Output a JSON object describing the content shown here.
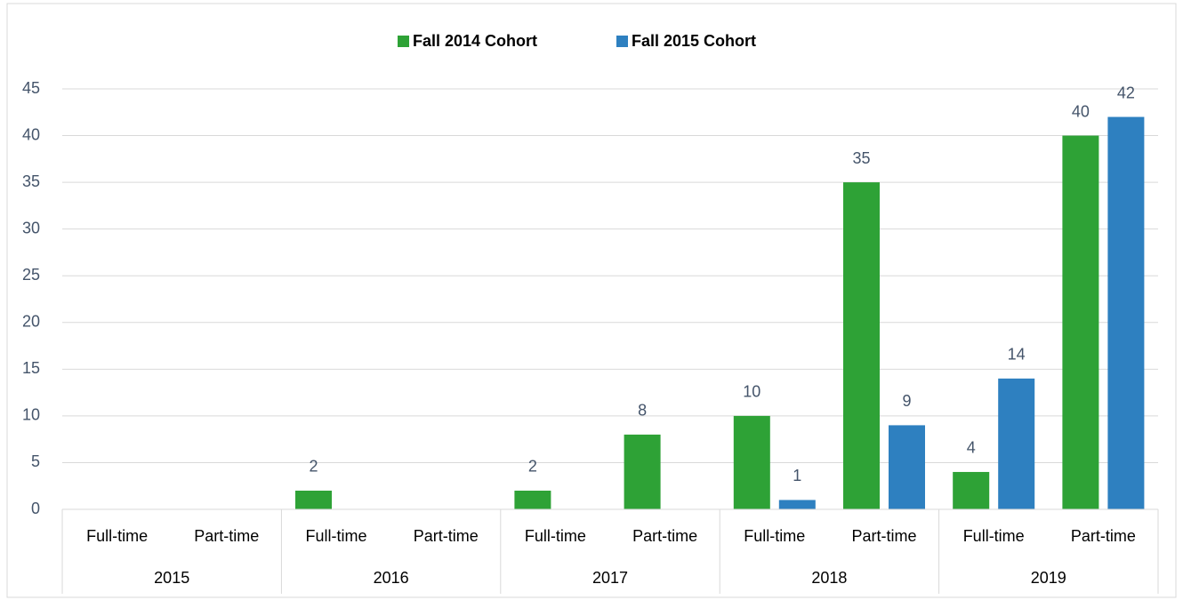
{
  "chart_data": {
    "type": "bar",
    "categories": [
      "Full-time",
      "Part-time",
      "Full-time",
      "Part-time",
      "Full-time",
      "Part-time",
      "Full-time",
      "Part-time",
      "Full-time",
      "Part-time"
    ],
    "groups": [
      "2015",
      "2016",
      "2017",
      "2018",
      "2019"
    ],
    "series": [
      {
        "name": "Fall 2014 Cohort",
        "color": "#2ea236",
        "values": [
          null,
          null,
          2,
          null,
          2,
          8,
          10,
          35,
          4,
          40
        ]
      },
      {
        "name": "Fall 2015 Cohort",
        "color": "#2e80c0",
        "values": [
          null,
          null,
          null,
          null,
          null,
          null,
          1,
          9,
          14,
          42
        ]
      }
    ],
    "ylim": [
      0,
      45
    ],
    "yticks": [
      0,
      5,
      10,
      15,
      20,
      25,
      30,
      35,
      40,
      45
    ],
    "grid": true,
    "legend": "top"
  }
}
